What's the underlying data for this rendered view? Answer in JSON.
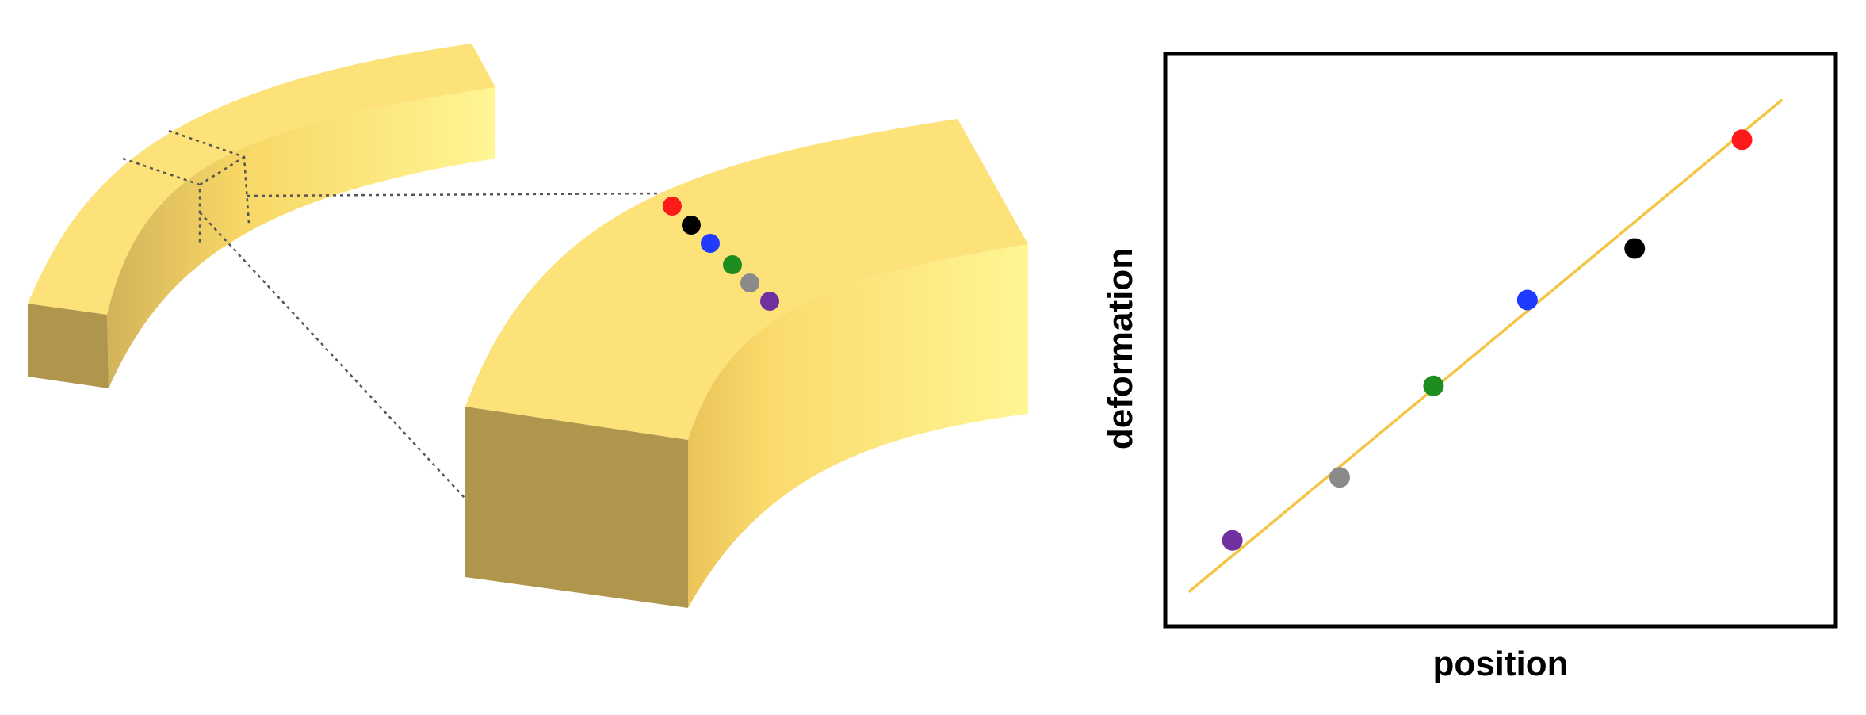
{
  "colors": {
    "beam_top": "#fde27a",
    "beam_side_light": "#fff694",
    "beam_side_dark": "#f6cf62",
    "beam_end": "#b0964c",
    "fit_line": "#f4c542",
    "frame": "#000000",
    "guide": "#555555"
  },
  "markers": [
    {
      "name": "red",
      "color": "#ff1a1a"
    },
    {
      "name": "black",
      "color": "#000000"
    },
    {
      "name": "blue",
      "color": "#1f3bff"
    },
    {
      "name": "green",
      "color": "#1e8c1e"
    },
    {
      "name": "gray",
      "color": "#8a8a8a"
    },
    {
      "name": "purple",
      "color": "#7030a0"
    }
  ],
  "chart_data": {
    "type": "scatter",
    "xlabel": "position",
    "ylabel": "deformation",
    "xlim": [
      0,
      10
    ],
    "ylim": [
      0,
      10
    ],
    "grid": false,
    "points": [
      {
        "x": 1.0,
        "y": 1.5,
        "color": "#7030a0"
      },
      {
        "x": 2.6,
        "y": 2.6,
        "color": "#8a8a8a"
      },
      {
        "x": 4.0,
        "y": 4.2,
        "color": "#1e8c1e"
      },
      {
        "x": 5.4,
        "y": 5.7,
        "color": "#1f3bff"
      },
      {
        "x": 7.0,
        "y": 6.6,
        "color": "#000000"
      },
      {
        "x": 8.6,
        "y": 8.5,
        "color": "#ff1a1a"
      }
    ],
    "fit_line": {
      "x": [
        0.35,
        9.2
      ],
      "y": [
        0.6,
        9.2
      ],
      "color": "#f4c542"
    }
  }
}
